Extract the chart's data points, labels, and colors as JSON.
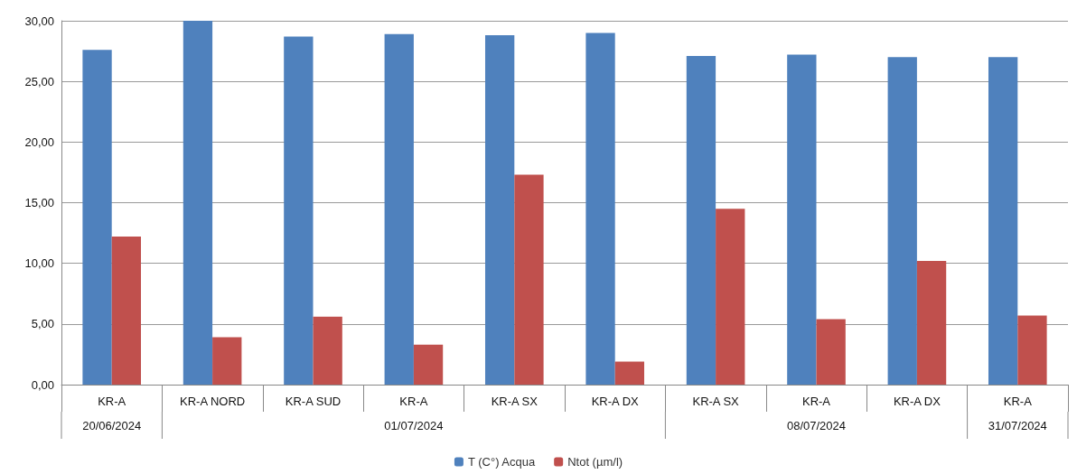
{
  "chart_data": {
    "type": "bar",
    "categories": [
      "KR-A",
      "KR-A NORD",
      "KR-A SUD",
      "KR-A",
      "KR-A SX",
      "KR-A DX",
      "KR-A SX",
      "KR-A",
      "KR-A DX",
      "KR-A"
    ],
    "series": [
      {
        "name": "T (C°) Acqua",
        "color": "#4f81bd",
        "values": [
          27.6,
          30.0,
          28.7,
          28.9,
          28.8,
          29.0,
          27.1,
          27.2,
          27.0,
          27.0
        ]
      },
      {
        "name": "Ntot (µm/l)",
        "color": "#c0504d",
        "values": [
          12.2,
          3.9,
          5.6,
          3.3,
          17.3,
          1.9,
          14.5,
          5.4,
          10.2,
          5.7
        ]
      }
    ],
    "annotations": [
      "20/06/2024",
      "01/07/2024",
      "08/07/2024",
      "31/07/2024"
    ],
    "ylim": [
      0,
      30
    ],
    "yticks": [
      {
        "value": 0,
        "label": "0,00"
      },
      {
        "value": 5,
        "label": "5,00"
      },
      {
        "value": 10,
        "label": "10,00"
      },
      {
        "value": 15,
        "label": "15,00"
      },
      {
        "value": 20,
        "label": "20,00"
      },
      {
        "value": 25,
        "label": "25,00"
      },
      {
        "value": 30,
        "label": "30,00"
      }
    ],
    "grid": "y",
    "legend": "bottom"
  }
}
